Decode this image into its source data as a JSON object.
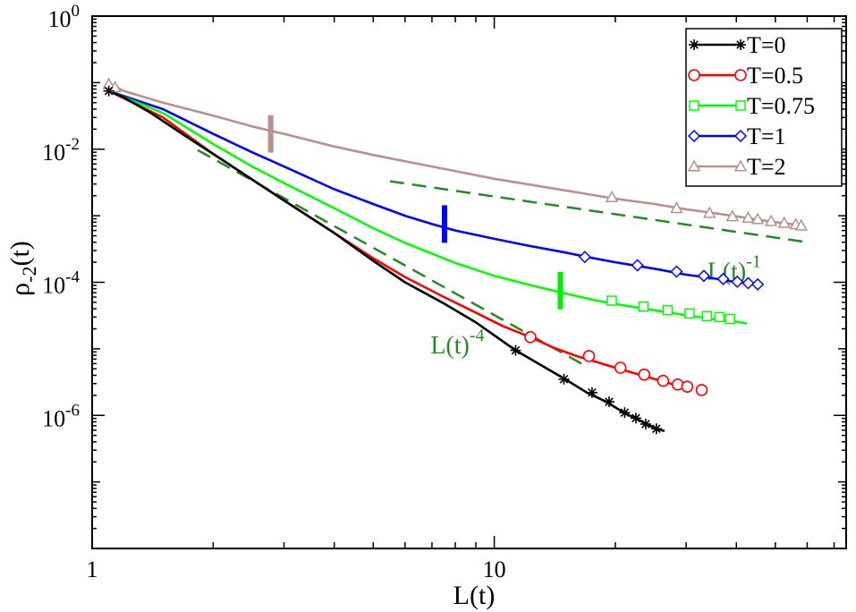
{
  "chart_data": {
    "type": "line",
    "xscale": "log",
    "yscale": "log",
    "xlim": [
      1,
      75
    ],
    "ylim": [
      1e-08,
      1
    ],
    "xlabel": "L(t)",
    "ylabel_base": "ρ",
    "ylabel_sub": "-2",
    "ylabel_tail": "(t)",
    "x_ticks": [
      {
        "value": 1,
        "label": "1"
      },
      {
        "value": 10,
        "label": "10"
      }
    ],
    "y_ticks": [
      {
        "value": 1,
        "mant": "10",
        "exp": "0"
      },
      {
        "value": 0.01,
        "mant": "10",
        "exp": "-2"
      },
      {
        "value": 0.0001,
        "mant": "10",
        "exp": "-4"
      },
      {
        "value": 1e-06,
        "mant": "10",
        "exp": "-6"
      }
    ],
    "legend_position": "top-right",
    "series": [
      {
        "name": "T=0",
        "color": "#000000",
        "marker": "star",
        "points": [
          [
            1.1,
            0.075
          ],
          [
            1.2,
            0.06
          ],
          [
            1.4,
            0.035
          ],
          [
            1.7,
            0.016
          ],
          [
            2,
            0.0085
          ],
          [
            2.5,
            0.0035
          ],
          [
            3,
            0.0017
          ],
          [
            4,
            0.00055
          ],
          [
            5,
            0.00021
          ],
          [
            6,
            0.0001
          ],
          [
            7.5,
            4.8e-05
          ],
          [
            9,
            2.5e-05
          ],
          [
            11.3,
            9.5e-06
          ],
          [
            13,
            5.8e-06
          ],
          [
            15,
            3.5e-06
          ],
          [
            17,
            2.2e-06
          ],
          [
            19,
            1.6e-06
          ],
          [
            21,
            1.1e-06
          ],
          [
            23,
            8.4e-07
          ],
          [
            25,
            6.5e-07
          ],
          [
            26.5,
            5.8e-07
          ]
        ],
        "markers": [
          [
            1.1,
            0.075
          ],
          [
            11.3,
            9.5e-06
          ],
          [
            14.9,
            3.5e-06
          ],
          [
            17.5,
            2.2e-06
          ],
          [
            19.3,
            1.6e-06
          ],
          [
            21.1,
            1.1e-06
          ],
          [
            22.5,
            9.1e-07
          ],
          [
            23.8,
            7.4e-07
          ],
          [
            25.3,
            6.3e-07
          ]
        ]
      },
      {
        "name": "T=0.5",
        "color": "#ff0000",
        "marker": "circle",
        "points": [
          [
            1.1,
            0.075
          ],
          [
            1.5,
            0.03
          ],
          [
            2,
            0.0085
          ],
          [
            3,
            0.0017
          ],
          [
            4,
            0.00055
          ],
          [
            5,
            0.00023
          ],
          [
            6,
            0.00012
          ],
          [
            7.5,
            6e-05
          ],
          [
            9,
            3.5e-05
          ],
          [
            10.5,
            2.2e-05
          ],
          [
            12.3,
            1.5e-05
          ],
          [
            14,
            1.05e-05
          ],
          [
            16,
            7.8e-06
          ],
          [
            18,
            6.3e-06
          ],
          [
            20,
            5.2e-06
          ],
          [
            22,
            4.4e-06
          ],
          [
            24,
            3.8e-06
          ],
          [
            26,
            3.3e-06
          ],
          [
            28,
            2.9e-06
          ],
          [
            31,
            2.5e-06
          ]
        ],
        "markers": [
          [
            12.3,
            1.5e-05
          ],
          [
            17.2,
            7.8e-06
          ],
          [
            20.6,
            5.2e-06
          ],
          [
            23.6,
            4.1e-06
          ],
          [
            26.3,
            3.3e-06
          ],
          [
            28.6,
            2.9e-06
          ],
          [
            30.2,
            2.7e-06
          ],
          [
            32.8,
            2.4e-06
          ]
        ]
      },
      {
        "name": "T=0.75",
        "color": "#00ff00",
        "marker": "square",
        "points": [
          [
            1.1,
            0.075
          ],
          [
            1.5,
            0.035
          ],
          [
            2,
            0.012
          ],
          [
            2.5,
            0.0055
          ],
          [
            3,
            0.0031
          ],
          [
            4,
            0.0013
          ],
          [
            5,
            0.00065
          ],
          [
            6,
            0.00039
          ],
          [
            7,
            0.00027
          ],
          [
            8,
            0.000195
          ],
          [
            10,
            0.000125
          ],
          [
            12,
            9.4e-05
          ],
          [
            15,
            6.8e-05
          ],
          [
            18,
            5.3e-05
          ],
          [
            21,
            4.5e-05
          ],
          [
            25,
            3.8e-05
          ],
          [
            30,
            3.2e-05
          ],
          [
            35,
            2.8e-05
          ],
          [
            40,
            2.55e-05
          ],
          [
            42.5,
            2.4e-05
          ]
        ],
        "markers": [
          [
            19.6,
            5.3e-05
          ],
          [
            23.5,
            4.3e-05
          ],
          [
            27,
            3.8e-05
          ],
          [
            30.6,
            3.4e-05
          ],
          [
            33.8,
            3.1e-05
          ],
          [
            36.3,
            3e-05
          ],
          [
            38.6,
            2.8e-05
          ]
        ]
      },
      {
        "name": "T=1",
        "color": "#0000ff",
        "marker": "diamond",
        "points": [
          [
            1.1,
            0.075
          ],
          [
            1.5,
            0.04
          ],
          [
            2,
            0.017
          ],
          [
            2.5,
            0.009
          ],
          [
            3,
            0.0055
          ],
          [
            4,
            0.0025
          ],
          [
            5,
            0.0015
          ],
          [
            6,
            0.001
          ],
          [
            7,
            0.00075
          ],
          [
            8,
            0.0006
          ],
          [
            10,
            0.00045
          ],
          [
            12,
            0.00036
          ],
          [
            15,
            0.00028
          ],
          [
            17,
            0.00024
          ],
          [
            20,
            0.0002
          ],
          [
            25,
            0.00016
          ],
          [
            30,
            0.00013
          ],
          [
            35,
            0.000115
          ],
          [
            40,
            0.0001
          ],
          [
            45,
            9.3e-05
          ]
        ],
        "markers": [
          [
            16.8,
            0.00024
          ],
          [
            22.7,
            0.00018
          ],
          [
            28.4,
            0.000145
          ],
          [
            33.2,
            0.000125
          ],
          [
            37.1,
            0.000112
          ],
          [
            40.2,
            0.000102
          ],
          [
            42.8,
            9.7e-05
          ],
          [
            45.2,
            9.3e-05
          ]
        ]
      },
      {
        "name": "T=2",
        "color": "#bc8f8f",
        "marker": "triangle",
        "points": [
          [
            1.1,
            0.095
          ],
          [
            1.2,
            0.075
          ],
          [
            1.5,
            0.05
          ],
          [
            2,
            0.032
          ],
          [
            2.5,
            0.022
          ],
          [
            3,
            0.017
          ],
          [
            4,
            0.011
          ],
          [
            5,
            0.0082
          ],
          [
            7,
            0.0055
          ],
          [
            10,
            0.0036
          ],
          [
            15,
            0.0024
          ],
          [
            20,
            0.0018
          ],
          [
            25,
            0.0015
          ],
          [
            30,
            0.00125
          ],
          [
            35,
            0.0011
          ],
          [
            40,
            0.00098
          ],
          [
            45,
            0.00088
          ],
          [
            50,
            0.0008
          ],
          [
            55,
            0.00075
          ],
          [
            59,
            0.00072
          ]
        ],
        "markers": [
          [
            1.1,
            0.095
          ],
          [
            1.14,
            0.085
          ],
          [
            19.6,
            0.0019
          ],
          [
            28.4,
            0.0013
          ],
          [
            34.3,
            0.0011
          ],
          [
            39.1,
            0.00098
          ],
          [
            42.8,
            0.00093
          ],
          [
            45.2,
            0.00089
          ],
          [
            48.8,
            0.00083
          ],
          [
            52.6,
            0.00078
          ],
          [
            56.2,
            0.00074
          ],
          [
            58,
            0.00071
          ]
        ]
      }
    ],
    "guides": [
      {
        "label": "L(t)",
        "exp": "-4",
        "color": "#228b22",
        "from": [
          1.83,
          0.0097
        ],
        "to": [
          17.1,
          5.3e-06
        ],
        "label_at": [
          8.1,
          8.5e-06
        ]
      },
      {
        "label": "L(t)",
        "exp": "-1",
        "color": "#228b22",
        "from": [
          5.5,
          0.0033
        ],
        "to": [
          60,
          0.0004
        ],
        "label_at": [
          39.5,
          0.00011
        ]
      }
    ],
    "crossover_markers": [
      {
        "series": "T=2",
        "x": 2.78,
        "y": 0.017,
        "color": "#bc8f8f"
      },
      {
        "series": "T=1",
        "x": 7.52,
        "y": 0.00075,
        "color": "#0000ff"
      },
      {
        "series": "T=0.75",
        "x": 14.6,
        "y": 7.5e-05,
        "color": "#00ee00"
      }
    ]
  }
}
